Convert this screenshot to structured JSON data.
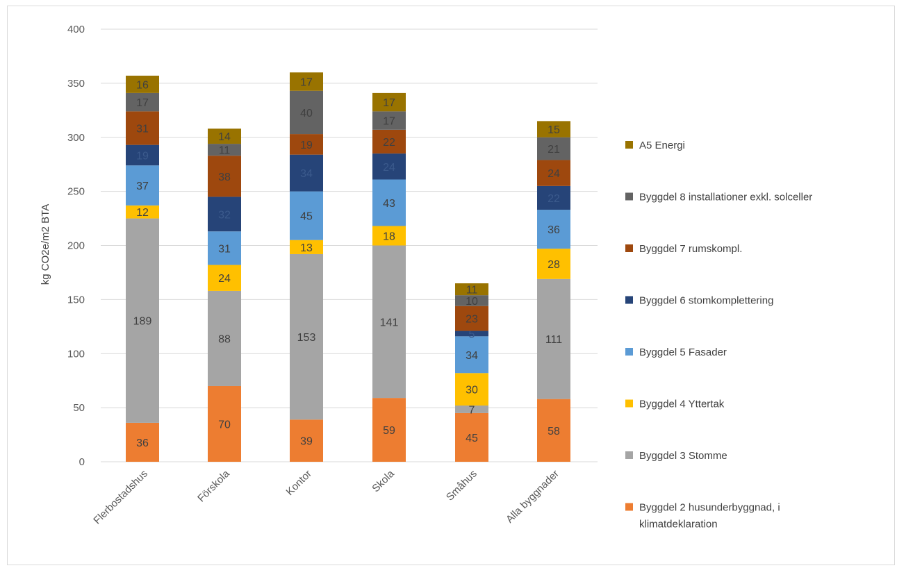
{
  "chart_data": {
    "type": "bar",
    "stacked": true,
    "ylabel": "kg CO2e/m2 BTA",
    "xlabel": "",
    "ylim": [
      0,
      400
    ],
    "yticks": [
      0,
      50,
      100,
      150,
      200,
      250,
      300,
      350,
      400
    ],
    "grid": true,
    "legend_position": "right",
    "categories": [
      "Flerbostadshus",
      "Förskola",
      "Kontor",
      "Skola",
      "Småhus",
      "Alla byggnader"
    ],
    "series": [
      {
        "name": "Byggdel 2 husunderbyggnad, i klimatdeklaration",
        "color": "#ED7D31",
        "label_color": "#404040",
        "values": [
          36,
          70,
          39,
          59,
          45,
          58
        ]
      },
      {
        "name": "Byggdel 3 Stomme",
        "color": "#A5A5A5",
        "label_color": "#404040",
        "values": [
          189,
          88,
          153,
          141,
          7,
          111
        ]
      },
      {
        "name": "Byggdel 4 Yttertak",
        "color": "#FFC000",
        "label_color": "#404040",
        "values": [
          12,
          24,
          13,
          18,
          30,
          28
        ]
      },
      {
        "name": "Byggdel 5 Fasader",
        "color": "#5B9BD5",
        "label_color": "#404040",
        "values": [
          37,
          31,
          45,
          43,
          34,
          36
        ]
      },
      {
        "name": "Byggdel 6 stomkomplettering",
        "color": "#264478",
        "label_color": "#3b5a8c",
        "values": [
          19,
          32,
          34,
          24,
          5,
          22
        ]
      },
      {
        "name": "Byggdel 7 rumskompl.",
        "color": "#9E480E",
        "label_color": "#404040",
        "values": [
          31,
          38,
          19,
          22,
          23,
          24
        ]
      },
      {
        "name": "Byggdel 8 installationer exkl. solceller",
        "color": "#636363",
        "label_color": "#404040",
        "values": [
          17,
          11,
          40,
          17,
          10,
          21
        ]
      },
      {
        "name": "A5 Energi",
        "color": "#997300",
        "label_color": "#404040",
        "values": [
          16,
          14,
          17,
          17,
          11,
          15
        ]
      }
    ]
  }
}
